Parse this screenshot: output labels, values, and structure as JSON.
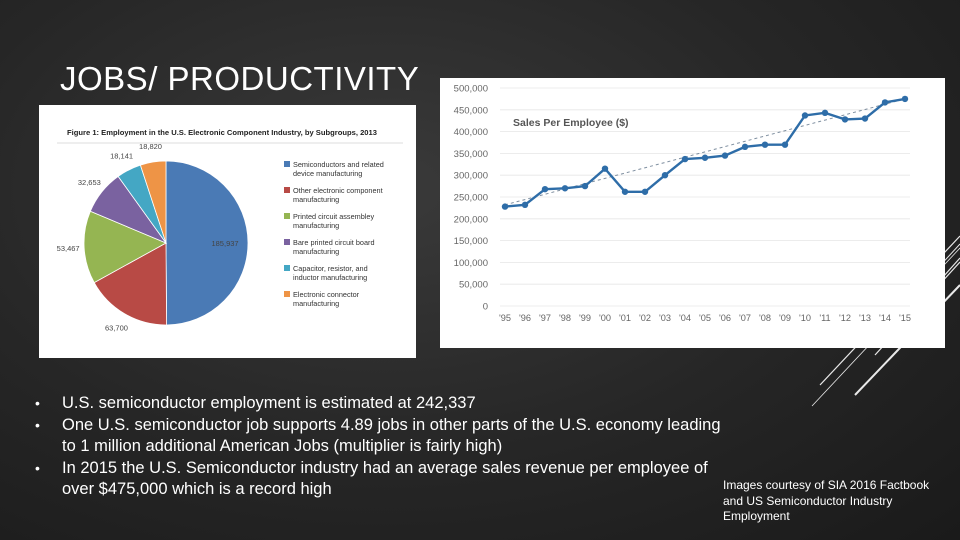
{
  "slide": {
    "title": "JOBS/ PRODUCTIVITY",
    "bullets": [
      "U.S. semiconductor employment is estimated at 242,337",
      "One U.S. semiconductor job supports 4.89 jobs in other parts of the U.S. economy leading to 1 million additional American Jobs (multiplier is fairly high)",
      "In 2015 the U.S. Semiconductor industry had an average sales revenue per employee of over $475,000 which is a record high"
    ],
    "bullet_glyph": "•",
    "credit": "Images courtesy of SIA 2016 Factbook and US Semiconductor Industry Employment"
  },
  "chart_data": [
    {
      "type": "pie",
      "title": "Figure 1: Employment in the U.S. Electronic Component Industry, by Subgroups, 2013",
      "slices": [
        {
          "label": "Semiconductors and related device manufacturing",
          "value": 185937,
          "value_label": "185,937",
          "color": "#4a7ab5"
        },
        {
          "label": "Other electronic component manufacturing",
          "value": 63700,
          "value_label": "63,700",
          "color": "#b84a45"
        },
        {
          "label": "Printed circuit assembley manufacturing",
          "value": 53467,
          "value_label": "53,467",
          "color": "#95b552"
        },
        {
          "label": "Bare printed circuit board manufacturing",
          "value": 32653,
          "value_label": "32,653",
          "color": "#7a62a0"
        },
        {
          "label": "Capacitor, resistor, and inductor manufacturing",
          "value": 18141,
          "value_label": "18,141",
          "color": "#44a7c4"
        },
        {
          "label": "Electronic connector manufacturing",
          "value": 18820,
          "value_label": "18,820",
          "color": "#ee9446"
        }
      ]
    },
    {
      "type": "line",
      "title": "Sales Per Employee ($)",
      "categories": [
        "'95",
        "'96",
        "'97",
        "'98",
        "'99",
        "'00",
        "'01",
        "'02",
        "'03",
        "'04",
        "'05",
        "'06",
        "'07",
        "'08",
        "'09",
        "'10",
        "'11",
        "'12",
        "'13",
        "'14",
        "'15"
      ],
      "series": [
        {
          "values": [
            228000,
            232000,
            268000,
            270000,
            275000,
            315000,
            262000,
            262000,
            300000,
            337000,
            340000,
            345000,
            365000,
            370000,
            370000,
            437000,
            443000,
            428000,
            430000,
            467000,
            475000
          ],
          "color": "#2e6da8"
        }
      ],
      "trendline": {
        "values": [
          232000,
          475000
        ],
        "color": "#7f8fa0",
        "style": "dashed"
      },
      "y_ticks": [
        "0",
        "50,000",
        "100,000",
        "150,000",
        "200,000",
        "250,000",
        "300,000",
        "350,000",
        "400,000",
        "450,000",
        "500,000"
      ],
      "ylim": [
        0,
        500000
      ],
      "grid": true
    }
  ]
}
